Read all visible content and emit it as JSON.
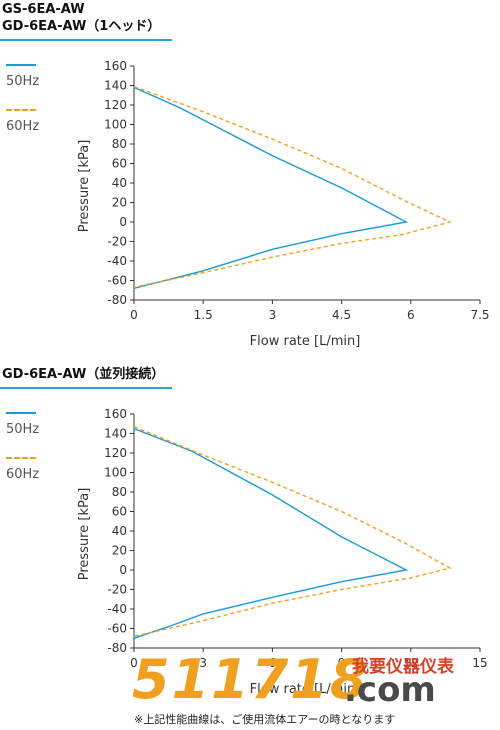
{
  "section1": {
    "title_line1": "GS-6EA-AW",
    "title_line2": "GD-6EA-AW（1ヘッド）"
  },
  "section2": {
    "title": "GD-6EA-AW（並列接続）"
  },
  "legend": [
    {
      "label": "50Hz",
      "color": "#1a9ad6",
      "style": "solid"
    },
    {
      "label": "60Hz",
      "color": "#f0a020",
      "style": "dashed"
    }
  ],
  "note": "※上記性能曲線は、ご使用流体エアーの時となります",
  "watermark": {
    "digits": "511718",
    "cn": "我要仪器仪表",
    "com": ".com"
  },
  "chart_data": [
    {
      "type": "line",
      "xlabel": "Flow rate [L/min]",
      "ylabel": "Pressure [kPa]",
      "xlim": [
        0,
        7.5
      ],
      "ylim": [
        -80,
        160
      ],
      "xticks": [
        "0",
        "1.5",
        "3",
        "4.5",
        "6",
        "7.5"
      ],
      "yticks": [
        "-80",
        "-60",
        "-40",
        "-20",
        "0",
        "20",
        "40",
        "60",
        "80",
        "100",
        "120",
        "140",
        "160"
      ],
      "grid": false,
      "legend_position": "left",
      "series": [
        {
          "name": "50Hz",
          "color": "#1a9ad6",
          "style": "solid",
          "x": [
            0,
            1.0,
            3.0,
            4.5,
            5.9,
            4.5,
            3.0,
            1.5,
            0
          ],
          "y": [
            138,
            117,
            68,
            35,
            0,
            -12,
            -28,
            -50,
            -68
          ]
        },
        {
          "name": "60Hz",
          "color": "#f0a020",
          "style": "dashed",
          "x": [
            0,
            1.5,
            3.0,
            4.5,
            5.9,
            6.85,
            5.8,
            4.5,
            3.0,
            1.5,
            0
          ],
          "y": [
            139,
            113,
            85,
            55,
            21,
            0,
            -13,
            -22,
            -36,
            -52,
            -67
          ]
        }
      ]
    },
    {
      "type": "line",
      "xlabel": "Flow rate [L/min]",
      "ylabel": "Pressure [kPa]",
      "xlim": [
        0,
        15
      ],
      "ylim": [
        -80,
        160
      ],
      "xticks": [
        "0",
        "3",
        "6",
        "9",
        "12",
        "15"
      ],
      "yticks": [
        "-80",
        "-60",
        "-40",
        "-20",
        "0",
        "20",
        "40",
        "60",
        "80",
        "100",
        "120",
        "140",
        "160"
      ],
      "grid": false,
      "legend_position": "left",
      "series": [
        {
          "name": "50Hz",
          "color": "#1a9ad6",
          "style": "solid",
          "x": [
            0,
            2.5,
            6.0,
            9.0,
            11.8,
            9.0,
            6.0,
            3.0,
            1.5,
            0
          ],
          "y": [
            145,
            122,
            77,
            34,
            0,
            -12,
            -28,
            -45,
            -58,
            -70
          ]
        },
        {
          "name": "60Hz",
          "color": "#f0a020",
          "style": "dashed",
          "x": [
            0,
            3.0,
            6.0,
            9.0,
            11.8,
            13.7,
            12.0,
            9.0,
            6.0,
            3.0,
            0
          ],
          "y": [
            147,
            118,
            90,
            60,
            27,
            2,
            -8,
            -20,
            -34,
            -52,
            -68
          ]
        }
      ]
    }
  ]
}
